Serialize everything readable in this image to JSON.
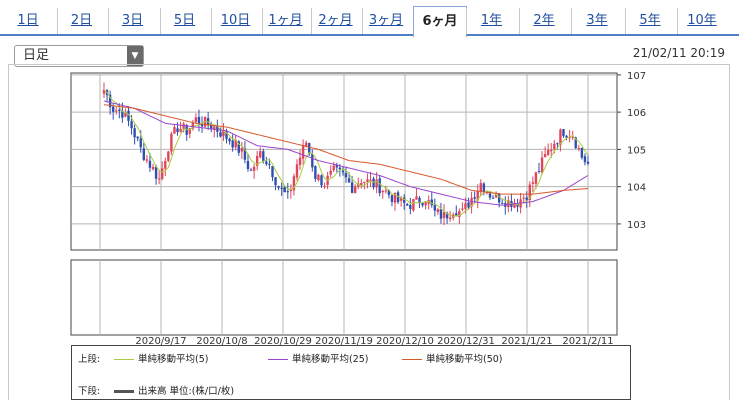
{
  "tabs": [
    "1日",
    "2日",
    "3日",
    "5日",
    "10日",
    "1ヶ月",
    "2ヶ月",
    "3ヶ月",
    "6ヶ月",
    "1年",
    "2年",
    "3年",
    "5年",
    "10年"
  ],
  "active_tab": "6ヶ月",
  "select": {
    "value": "日足"
  },
  "timestamp": "21/02/11 20:19",
  "legend": {
    "upper_label": "上段:",
    "lower_label": "下段:",
    "sma5": "単純移動平均(5)",
    "sma25": "単純移動平均(25)",
    "sma50": "単純移動平均(50)",
    "volume": "出来高 単位:(株/口/枚)"
  },
  "colors": {
    "up": "#e0455a",
    "down": "#2f4fb0",
    "sma5": "#aacc44",
    "sma25": "#9b44cc",
    "sma50": "#d9582a",
    "tab_accent": "#4f7fc6"
  },
  "chart_data": {
    "type": "candlestick",
    "ylim": [
      102.3,
      107.05
    ],
    "yticks": [
      103,
      104,
      105,
      106,
      107
    ],
    "x_labels": [
      "2020/9/17",
      "2020/10/8",
      "2020/10/29",
      "2020/11/19",
      "2020/12/10",
      "2020/12/31",
      "2021/1/21",
      "2021/2/11"
    ],
    "sma_labels": [
      "単純移動平均(5)",
      "単純移動平均(25)",
      "単純移動平均(50)"
    ],
    "close_points": [
      [
        0,
        106.6
      ],
      [
        3,
        106.1
      ],
      [
        6,
        106.0
      ],
      [
        9,
        105.6
      ],
      [
        12,
        105.0
      ],
      [
        15,
        104.6
      ],
      [
        18,
        104.2
      ],
      [
        21,
        105.1
      ],
      [
        24,
        105.6
      ],
      [
        27,
        105.5
      ],
      [
        30,
        105.8
      ],
      [
        33,
        105.7
      ],
      [
        36,
        105.6
      ],
      [
        39,
        105.4
      ],
      [
        42,
        105.2
      ],
      [
        45,
        104.9
      ],
      [
        48,
        104.4
      ],
      [
        51,
        104.9
      ],
      [
        54,
        104.6
      ],
      [
        57,
        104.0
      ],
      [
        60,
        103.7
      ],
      [
        63,
        104.6
      ],
      [
        66,
        105.2
      ],
      [
        69,
        104.3
      ],
      [
        72,
        104.1
      ],
      [
        75,
        104.4
      ],
      [
        78,
        104.3
      ],
      [
        81,
        104.0
      ],
      [
        84,
        104.2
      ],
      [
        87,
        104.1
      ],
      [
        90,
        104.0
      ],
      [
        93,
        103.8
      ],
      [
        96,
        103.6
      ],
      [
        99,
        103.5
      ],
      [
        102,
        103.6
      ],
      [
        105,
        103.7
      ],
      [
        108,
        103.3
      ],
      [
        111,
        103.2
      ],
      [
        114,
        103.4
      ],
      [
        117,
        103.3
      ],
      [
        120,
        103.7
      ],
      [
        123,
        104.1
      ],
      [
        126,
        103.8
      ],
      [
        129,
        103.7
      ],
      [
        132,
        103.6
      ],
      [
        135,
        103.6
      ],
      [
        138,
        103.8
      ],
      [
        141,
        104.3
      ],
      [
        144,
        104.8
      ],
      [
        147,
        105.2
      ],
      [
        150,
        105.5
      ],
      [
        153,
        105.4
      ],
      [
        156,
        104.8
      ],
      [
        158,
        104.6
      ]
    ],
    "sma25_points": [
      [
        0,
        106.3
      ],
      [
        10,
        106.1
      ],
      [
        20,
        105.7
      ],
      [
        30,
        105.6
      ],
      [
        40,
        105.5
      ],
      [
        50,
        105.1
      ],
      [
        60,
        105.0
      ],
      [
        70,
        104.7
      ],
      [
        80,
        104.5
      ],
      [
        90,
        104.3
      ],
      [
        100,
        104.0
      ],
      [
        110,
        103.8
      ],
      [
        120,
        103.6
      ],
      [
        130,
        103.5
      ],
      [
        140,
        103.6
      ],
      [
        150,
        103.9
      ],
      [
        158,
        104.3
      ]
    ],
    "sma50_points": [
      [
        0,
        106.2
      ],
      [
        10,
        106.1
      ],
      [
        20,
        105.9
      ],
      [
        30,
        105.7
      ],
      [
        40,
        105.6
      ],
      [
        50,
        105.4
      ],
      [
        60,
        105.2
      ],
      [
        70,
        105.0
      ],
      [
        80,
        104.7
      ],
      [
        90,
        104.6
      ],
      [
        100,
        104.4
      ],
      [
        110,
        104.2
      ],
      [
        120,
        103.9
      ],
      [
        130,
        103.8
      ],
      [
        140,
        103.8
      ],
      [
        150,
        103.9
      ],
      [
        158,
        103.95
      ]
    ]
  }
}
